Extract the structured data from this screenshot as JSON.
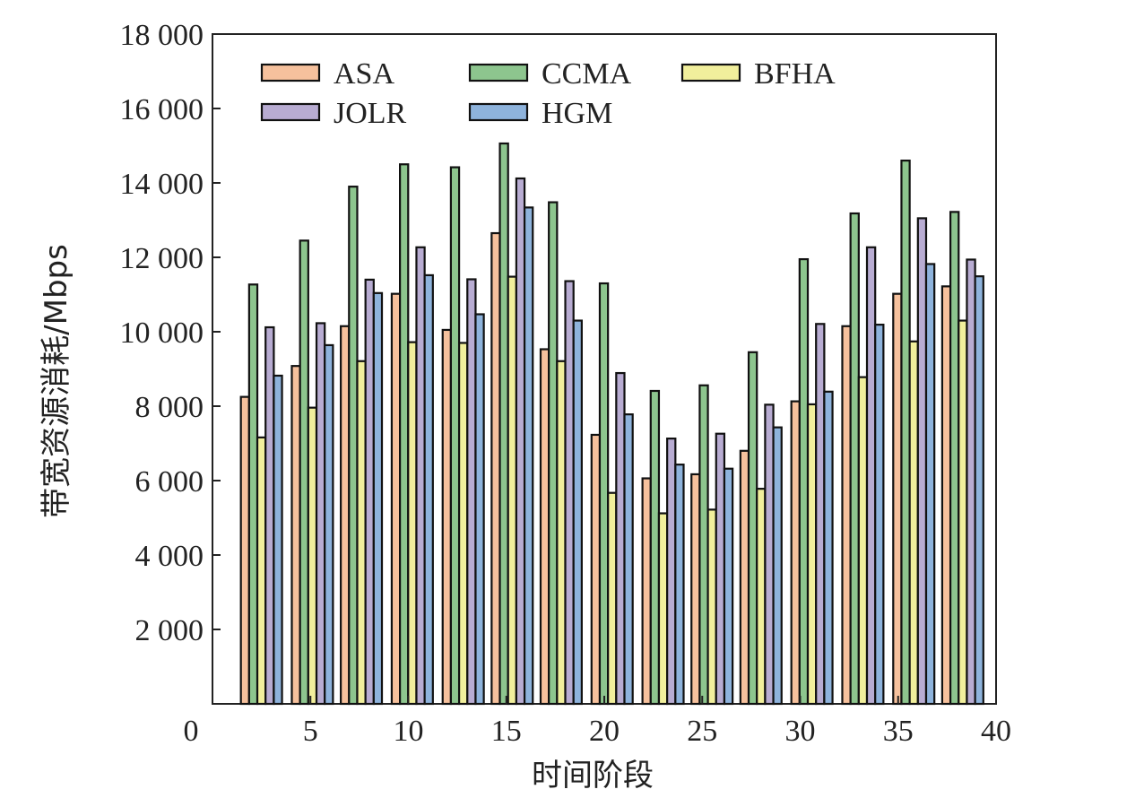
{
  "chart_data": {
    "type": "bar",
    "xlabel": "时间阶段",
    "ylabel": "带宽资源消耗/Mbps",
    "ylim": [
      0,
      18000
    ],
    "xlim": [
      0,
      40
    ],
    "y_ticks": [
      {
        "value": 2000,
        "label": "2 000"
      },
      {
        "value": 4000,
        "label": "4 000"
      },
      {
        "value": 6000,
        "label": "6 000"
      },
      {
        "value": 8000,
        "label": "8 000"
      },
      {
        "value": 10000,
        "label": "10 000"
      },
      {
        "value": 12000,
        "label": "12 000"
      },
      {
        "value": 14000,
        "label": "14 000"
      },
      {
        "value": 16000,
        "label": "16 000"
      },
      {
        "value": 18000,
        "label": "18 000"
      }
    ],
    "x_ticks": [
      {
        "value": 0,
        "label": "0"
      },
      {
        "value": 5,
        "label": "5"
      },
      {
        "value": 10,
        "label": "10"
      },
      {
        "value": 15,
        "label": "15"
      },
      {
        "value": 20,
        "label": "20"
      },
      {
        "value": 25,
        "label": "25"
      },
      {
        "value": 30,
        "label": "30"
      },
      {
        "value": 35,
        "label": "35"
      },
      {
        "value": 40,
        "label": "40"
      }
    ],
    "group_centers": [
      2.5,
      5.1,
      7.6,
      10.2,
      12.8,
      15.3,
      17.8,
      20.4,
      23.0,
      25.5,
      28.0,
      30.6,
      33.2,
      35.8,
      38.3
    ],
    "series": [
      {
        "name": "ASA",
        "color": "#f6c19d",
        "values": [
          8250,
          9080,
          10150,
          11020,
          10050,
          12650,
          9530,
          7230,
          6060,
          6170,
          6800,
          8130,
          10150,
          11020,
          11220
        ]
      },
      {
        "name": "CCMA",
        "color": "#8dc58e",
        "values": [
          11270,
          12450,
          13900,
          14500,
          14420,
          15060,
          13480,
          11300,
          8410,
          8560,
          9450,
          11950,
          13180,
          14600,
          13220
        ]
      },
      {
        "name": "BFHA",
        "color": "#f1ef9c",
        "values": [
          7160,
          7960,
          9210,
          9720,
          9700,
          11480,
          9210,
          5670,
          5120,
          5220,
          5780,
          8050,
          8780,
          9740,
          10300
        ]
      },
      {
        "name": "JOLR",
        "color": "#b8acd2",
        "values": [
          10120,
          10230,
          11400,
          12270,
          11410,
          14120,
          11360,
          8890,
          7130,
          7260,
          8040,
          10210,
          12270,
          13050,
          11940
        ]
      },
      {
        "name": "HGM",
        "color": "#8eb3dc",
        "values": [
          8820,
          9640,
          11040,
          11520,
          10470,
          13340,
          10300,
          7780,
          6430,
          6320,
          7430,
          8390,
          10190,
          11820,
          11490
        ]
      }
    ],
    "legend": {
      "placement": "top-left",
      "columns": 3
    },
    "grid": false
  }
}
